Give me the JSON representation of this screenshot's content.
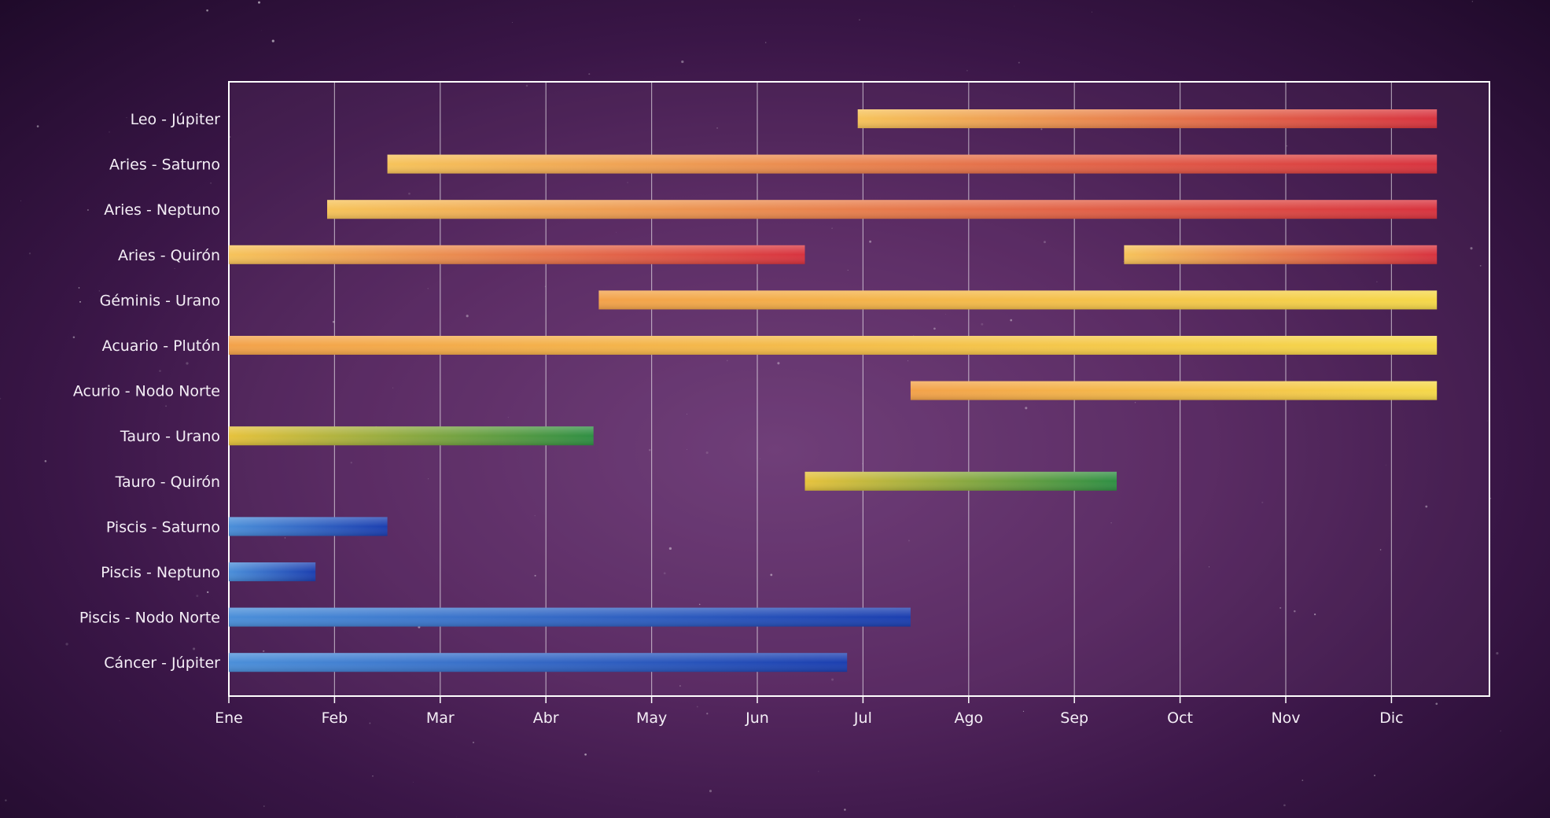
{
  "chart_data": {
    "type": "gantt",
    "title": "",
    "xlabel": "",
    "ylabel": "",
    "months": [
      "Ene",
      "Feb",
      "Mar",
      "Abr",
      "May",
      "Jun",
      "Jul",
      "Ago",
      "Sep",
      "Oct",
      "Nov",
      "Dic"
    ],
    "x_range_months": [
      0,
      12
    ],
    "grid": true,
    "series_colors": {
      "fire": {
        "start": "#f6c35a",
        "end": "#d8333f"
      },
      "air": {
        "start": "#f3a24a",
        "end": "#f5d84a"
      },
      "earth": {
        "start": "#e6c23c",
        "end": "#2f8f44"
      },
      "water": {
        "start": "#4b8fd9",
        "end": "#1c3fb0"
      }
    },
    "rows": [
      {
        "label": "Leo - Júpiter",
        "color": "fire",
        "segments": [
          [
            5.95,
            11.43
          ]
        ]
      },
      {
        "label": "Aries - Saturno",
        "color": "fire",
        "segments": [
          [
            1.5,
            11.43
          ]
        ]
      },
      {
        "label": "Aries - Neptuno",
        "color": "fire",
        "segments": [
          [
            0.93,
            11.43
          ]
        ]
      },
      {
        "label": "Aries - Quirón",
        "color": "fire",
        "segments": [
          [
            0.0,
            5.45
          ],
          [
            8.47,
            11.43
          ]
        ]
      },
      {
        "label": "Géminis - Urano",
        "color": "air",
        "segments": [
          [
            3.5,
            11.43
          ]
        ]
      },
      {
        "label": "Acuario - Plutón",
        "color": "air",
        "segments": [
          [
            0.0,
            11.43
          ]
        ]
      },
      {
        "label": "Acurio - Nodo Norte",
        "color": "air",
        "segments": [
          [
            6.45,
            11.43
          ]
        ]
      },
      {
        "label": "Tauro - Urano",
        "color": "earth",
        "segments": [
          [
            0.0,
            3.45
          ]
        ]
      },
      {
        "label": "Tauro - Quirón",
        "color": "earth",
        "segments": [
          [
            5.45,
            8.4
          ]
        ]
      },
      {
        "label": "Piscis - Saturno",
        "color": "water",
        "segments": [
          [
            0.0,
            1.5
          ]
        ]
      },
      {
        "label": "Piscis - Neptuno",
        "color": "water",
        "segments": [
          [
            0.0,
            0.82
          ]
        ]
      },
      {
        "label": "Piscis - Nodo Norte",
        "color": "water",
        "segments": [
          [
            0.0,
            6.45
          ]
        ]
      },
      {
        "label": "Cáncer - Júpiter",
        "color": "water",
        "segments": [
          [
            0.0,
            5.85
          ]
        ]
      }
    ]
  }
}
